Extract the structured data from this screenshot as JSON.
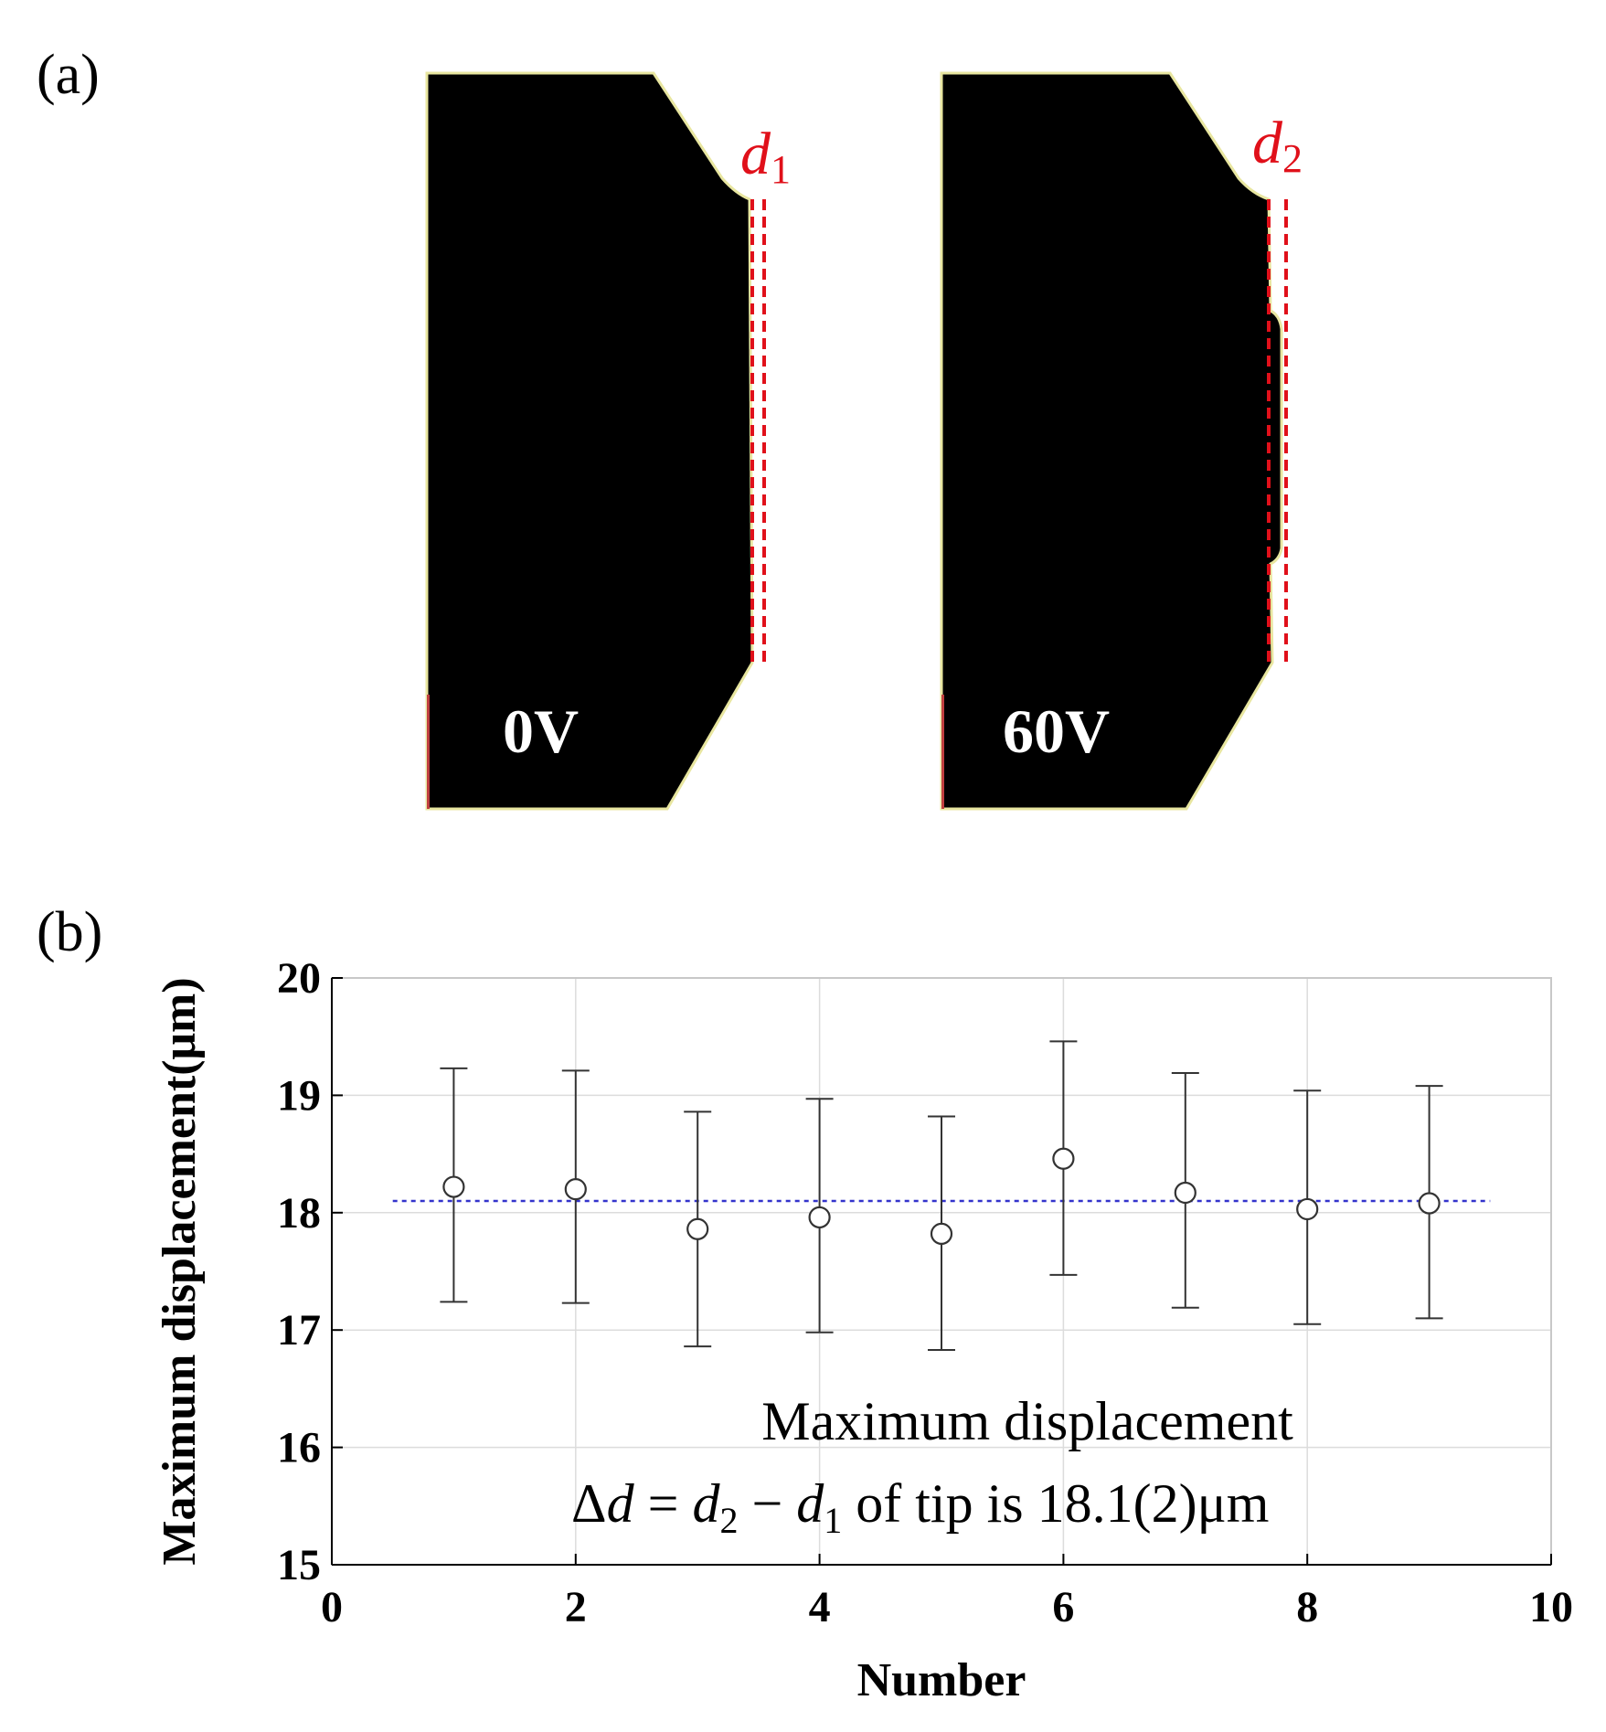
{
  "panel_a": {
    "label": "(a)",
    "left_image": {
      "voltage_label": "0V",
      "marker_symbol": "d",
      "marker_subscript": "1"
    },
    "right_image": {
      "voltage_label": "60V",
      "marker_symbol": "d",
      "marker_subscript": "2"
    },
    "colors": {
      "tip_fill": "#000000",
      "edge": "#e8e6a0",
      "marker_line": "#e0101a",
      "marker_text": "#e0101a"
    }
  },
  "panel_b": {
    "label": "(b)",
    "annotation": {
      "line1": "Maximum displacement",
      "delta": "Δ",
      "d": "d",
      "equals": " = ",
      "sub2": "2",
      "minus": " − ",
      "sub1": "1",
      "rest": " of tip is 18.1(2)μm"
    }
  },
  "chart_data": {
    "type": "scatter",
    "xlabel": "Number",
    "ylabel": "Maximum displacement(μm)",
    "xlim": [
      0,
      10
    ],
    "ylim": [
      15,
      20
    ],
    "xticks": [
      0,
      2,
      4,
      6,
      8,
      10
    ],
    "yticks": [
      15,
      16,
      17,
      18,
      19,
      20
    ],
    "grid": true,
    "x": [
      1,
      2,
      3,
      4,
      5,
      6,
      7,
      8,
      9
    ],
    "y": [
      18.22,
      18.2,
      17.86,
      17.96,
      17.82,
      18.46,
      18.17,
      18.03,
      18.08
    ],
    "err_low": [
      17.24,
      17.23,
      16.86,
      16.98,
      16.83,
      17.47,
      17.19,
      17.05,
      17.1
    ],
    "err_high": [
      19.23,
      19.21,
      18.86,
      18.97,
      18.82,
      19.46,
      19.19,
      19.04,
      19.08
    ],
    "mean_line": {
      "value": 18.1,
      "x_start": 0.5,
      "x_end": 9.5
    },
    "colors": {
      "markers": "#333333",
      "mean_line": "#3333cc",
      "grid": "#dcdcdc",
      "axes": "#000000"
    }
  }
}
